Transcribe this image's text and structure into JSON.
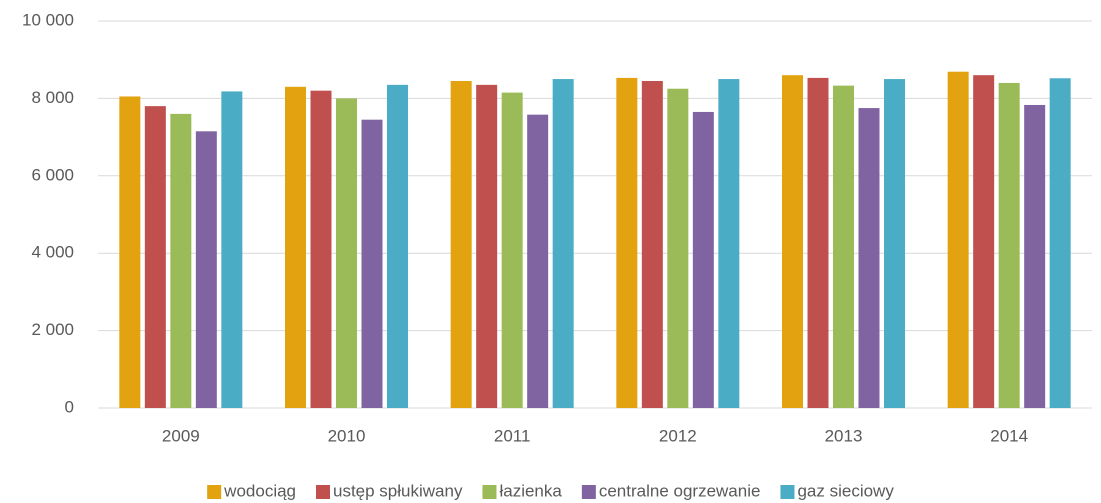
{
  "chart_data": {
    "type": "bar",
    "categories": [
      "2009",
      "2010",
      "2011",
      "2012",
      "2013",
      "2014"
    ],
    "series": [
      {
        "name": "wodociąg",
        "color": "#e3a311",
        "values": [
          8050,
          8300,
          8450,
          8530,
          8600,
          8690
        ]
      },
      {
        "name": "ustęp spłukiwany",
        "color": "#c0504d",
        "values": [
          7800,
          8200,
          8350,
          8450,
          8530,
          8600
        ]
      },
      {
        "name": "łazienka",
        "color": "#9bbb59",
        "values": [
          7600,
          8000,
          8150,
          8250,
          8330,
          8400
        ]
      },
      {
        "name": "centralne ogrzewanie",
        "color": "#8064a2",
        "values": [
          7150,
          7450,
          7580,
          7650,
          7750,
          7830
        ]
      },
      {
        "name": "gaz sieciowy",
        "color": "#4bacc6",
        "values": [
          8180,
          8350,
          8500,
          8500,
          8500,
          8520
        ]
      }
    ],
    "ylim": [
      0,
      10000
    ],
    "yticks": [
      0,
      {
        "value": 2000,
        "label": "2 000"
      },
      {
        "value": 4000,
        "label": "4 000"
      },
      {
        "value": 6000,
        "label": "6 000"
      },
      {
        "value": 8000,
        "label": "8 000"
      },
      {
        "value": 10000,
        "label": "10 000"
      }
    ],
    "grid": true,
    "legend": "bottom"
  }
}
